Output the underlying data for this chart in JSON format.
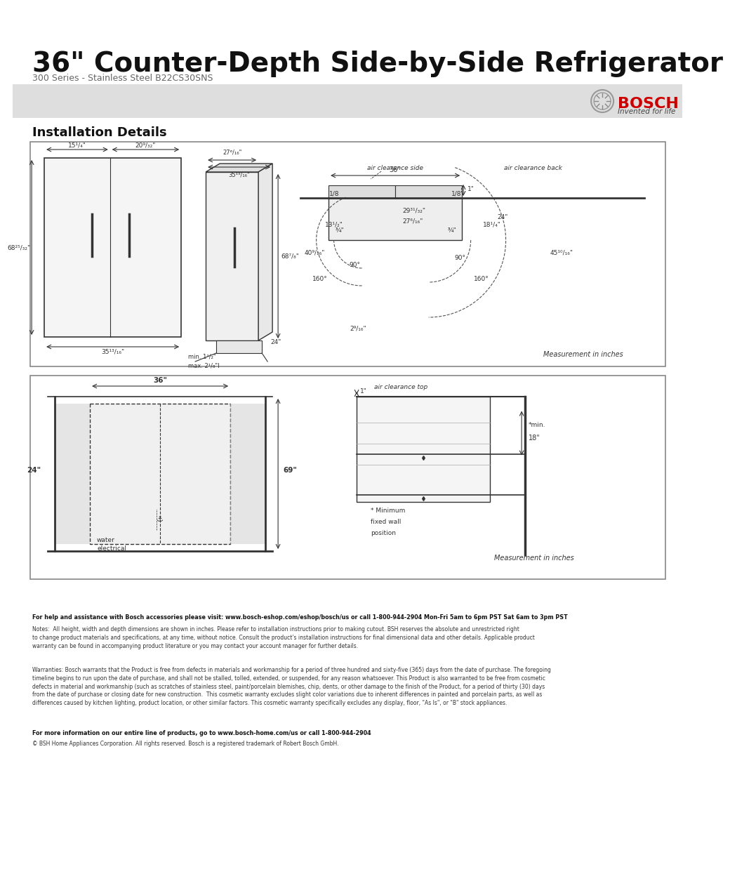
{
  "title": "36\" Counter-Depth Side-by-Side Refrigerator",
  "subtitle": "300 Series - Stainless Steel B22CS30SNS",
  "section_header": "Installation Details",
  "bosch_text": "BOSCH",
  "bosch_sub": "Invented for life",
  "bg_color": "#ffffff",
  "header_bg": "#e8e8e8",
  "border_color": "#555555",
  "diagram_border": "#888888",
  "text_color": "#000000",
  "bosch_red": "#cc0000",
  "footer_line1": "For help and assistance with Bosch accessories please visit: www.bosch-eshop.com/eshop/bosch/us or call 1-800-944-2904 Mon-Fri 5am to 6pm PST Sat 6am to 3pm PST",
  "footer_notes": "Notes:  All height, width and depth dimensions are shown in inches. Please refer to installation instructions prior to making cutout. BSH reserves the absolute and unrestricted right\nto change product materials and specifications, at any time, without notice. Consult the product's installation instructions for final dimensional data and other details. Applicable product\nwarranty can be found in accompanying product literature or you may contact your account manager for further details.",
  "footer_warranty": "Warranties: Bosch warrants that the Product is free from defects in materials and workmanship for a period of three hundred and sixty-five (365) days from the date of purchase. The foregoing\ntimeline begins to run upon the date of purchase, and shall not be stalled, tolled, extended, or suspended, for any reason whatsoever. This Product is also warranted to be free from cosmetic\ndefects in material and workmanship (such as scratches of stainless steel, paint/porcelain blemishes, chip, dents, or other damage to the finish of the Product, for a period of thirty (30) days\nfrom the date of purchase or closing date for new construction.  This cosmetic warranty excludes slight color variations due to inherent differences in painted and porcelain parts, as well as\ndifferences caused by kitchen lighting, product location, or other similar factors. This cosmetic warranty specifically excludes any display, floor, \"As Is\", or \"B\" stock appliances.",
  "footer_more": "For more information on our entire line of products, go to www.bosch-home.com/us or call 1-800-944-2904",
  "footer_copy": "© BSH Home Appliances Corporation. All rights reserved. Bosch is a registered trademark of Robert Bosch GmbH."
}
